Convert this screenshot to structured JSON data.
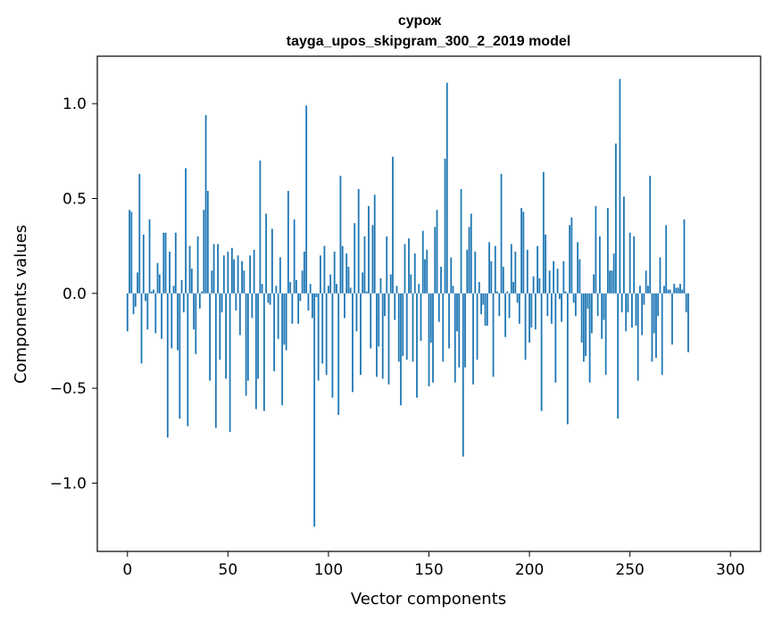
{
  "chart_data": {
    "type": "bar",
    "title_line1": "сурож",
    "title_line2": "tayga_upos_skipgram_300_2_2019 model",
    "xlabel": "Vector components",
    "ylabel": "Components values",
    "xlim": [
      -15,
      315
    ],
    "ylim": [
      -1.36,
      1.25
    ],
    "x_ticks": [
      0,
      50,
      100,
      150,
      200,
      250,
      300
    ],
    "x_tick_labels": [
      "0",
      "50",
      "100",
      "150",
      "200",
      "250",
      "300"
    ],
    "y_ticks": [
      -1.0,
      -0.5,
      0.0,
      0.5,
      1.0
    ],
    "y_tick_labels": [
      "−1.0",
      "−0.5",
      "0.0",
      "0.5",
      "1.0"
    ],
    "bar_color": "#1f77b4",
    "values": [
      -0.2,
      0.44,
      0.43,
      -0.11,
      -0.07,
      0.11,
      0.63,
      -0.37,
      0.31,
      -0.04,
      -0.19,
      0.39,
      0.01,
      0.02,
      -0.21,
      0.16,
      0.1,
      -0.24,
      0.32,
      0.32,
      -0.76,
      0.22,
      -0.29,
      0.04,
      0.32,
      -0.3,
      -0.66,
      0.07,
      -0.1,
      0.66,
      -0.7,
      0.25,
      0.13,
      -0.19,
      -0.32,
      0.3,
      -0.08,
      0.01,
      0.44,
      0.94,
      0.54,
      -0.46,
      0.12,
      0.26,
      -0.71,
      0.26,
      -0.35,
      -0.1,
      0.2,
      -0.45,
      0.22,
      -0.73,
      0.24,
      0.18,
      -0.09,
      0.2,
      -0.22,
      0.17,
      0.12,
      -0.54,
      -0.46,
      0.2,
      -0.13,
      0.23,
      -0.61,
      -0.45,
      0.7,
      0.05,
      -0.62,
      0.42,
      -0.05,
      -0.06,
      0.34,
      -0.41,
      0.04,
      -0.24,
      0.19,
      -0.59,
      -0.27,
      -0.3,
      0.54,
      0.06,
      -0.16,
      0.39,
      0.07,
      -0.16,
      -0.04,
      0.12,
      0.22,
      0.99,
      -0.09,
      0.05,
      -0.13,
      -1.23,
      -0.02,
      -0.46,
      0.2,
      -0.37,
      0.25,
      -0.43,
      0.04,
      0.1,
      -0.55,
      0.22,
      0.05,
      -0.64,
      0.62,
      0.25,
      -0.13,
      0.21,
      0.14,
      0.03,
      -0.52,
      0.37,
      -0.2,
      0.55,
      -0.43,
      0.11,
      0.3,
      0.01,
      0.46,
      -0.29,
      0.36,
      0.52,
      -0.44,
      -0.28,
      0.08,
      -0.45,
      -0.12,
      0.3,
      -0.48,
      0.1,
      0.72,
      -0.14,
      0.04,
      -0.36,
      -0.59,
      -0.33,
      0.26,
      -0.35,
      0.29,
      0.1,
      -0.36,
      0.21,
      -0.55,
      0.05,
      -0.25,
      0.33,
      0.18,
      0.23,
      -0.49,
      -0.26,
      -0.47,
      0.35,
      0.44,
      -0.15,
      0.14,
      -0.36,
      0.71,
      1.11,
      -0.29,
      0.19,
      0.04,
      -0.47,
      -0.2,
      -0.39,
      0.55,
      -0.86,
      -0.39,
      0.23,
      0.35,
      0.42,
      -0.48,
      0.22,
      -0.35,
      0.06,
      -0.11,
      -0.06,
      -0.17,
      -0.17,
      0.27,
      0.17,
      -0.44,
      0.25,
      0.01,
      -0.12,
      0.63,
      0.14,
      -0.23,
      0.01,
      -0.13,
      0.26,
      0.06,
      0.22,
      -0.05,
      -0.16,
      0.45,
      0.43,
      -0.35,
      0.23,
      -0.26,
      -0.18,
      0.09,
      -0.19,
      0.25,
      0.08,
      -0.62,
      0.64,
      0.31,
      -0.12,
      0.12,
      -0.16,
      0.17,
      -0.47,
      0.13,
      -0.03,
      -0.15,
      0.17,
      0.01,
      -0.69,
      0.36,
      0.4,
      -0.05,
      -0.12,
      0.27,
      0.18,
      -0.26,
      -0.36,
      -0.33,
      -0.08,
      -0.47,
      -0.21,
      0.1,
      0.46,
      -0.12,
      0.3,
      -0.24,
      -0.14,
      -0.43,
      0.45,
      0.12,
      0.12,
      0.21,
      0.79,
      -0.66,
      1.13,
      -0.1,
      0.51,
      -0.2,
      -0.1,
      0.32,
      -0.18,
      0.3,
      -0.17,
      -0.46,
      0.04,
      -0.22,
      -0.06,
      0.12,
      0.04,
      0.62,
      -0.36,
      -0.21,
      -0.34,
      -0.12,
      0.19,
      -0.43,
      0.04,
      0.36,
      0.02,
      0.02,
      -0.27,
      0.05,
      0.03,
      0.03,
      0.05,
      0.02,
      0.39,
      -0.1,
      -0.31
    ]
  }
}
